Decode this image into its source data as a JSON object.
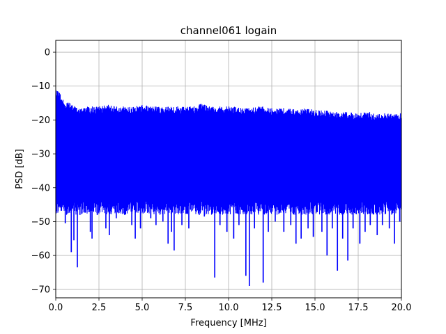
{
  "chart_data": {
    "type": "line",
    "title": "channel061 logain",
    "xlabel": "Frequency [MHz]",
    "ylabel": "PSD [dB]",
    "xlim": [
      0,
      20
    ],
    "ylim": [
      -72.5,
      3.5
    ],
    "xticks": [
      0.0,
      2.5,
      5.0,
      7.5,
      10.0,
      12.5,
      15.0,
      17.5,
      20.0
    ],
    "xtick_labels": [
      "0.0",
      "2.5",
      "5.0",
      "7.5",
      "10.0",
      "12.5",
      "15.0",
      "17.5",
      "20.0"
    ],
    "yticks": [
      0,
      -10,
      -20,
      -30,
      -40,
      -50,
      -60,
      -70
    ],
    "ytick_labels": [
      "0",
      "−10",
      "−20",
      "−30",
      "−40",
      "−50",
      "−60",
      "−70"
    ],
    "grid": true,
    "series": [
      {
        "color": "#0000ff",
        "x": [
          0.0,
          0.1,
          0.2,
          0.4,
          0.6,
          0.8,
          1.0,
          1.25,
          1.5,
          2.0,
          2.5,
          3.0,
          3.5,
          4.0,
          4.5,
          5.0,
          5.5,
          6.0,
          6.5,
          7.0,
          7.5,
          8.0,
          8.5,
          9.0,
          9.5,
          10.0,
          10.5,
          11.0,
          11.5,
          12.0,
          12.5,
          13.0,
          13.5,
          14.0,
          14.5,
          15.0,
          15.5,
          16.0,
          16.5,
          17.0,
          17.5,
          18.0,
          18.5,
          19.0,
          19.5,
          20.0
        ],
        "upper_envelope": [
          -11,
          -11,
          -11,
          -14,
          -14.5,
          -15,
          -15.5,
          -16,
          -16,
          -16,
          -16,
          -15.5,
          -16,
          -16,
          -16,
          -15.5,
          -16,
          -16,
          -16,
          -16,
          -16,
          -16,
          -15,
          -16,
          -16,
          -16,
          -16,
          -16.5,
          -16,
          -16,
          -16.5,
          -16.5,
          -16.5,
          -17,
          -16.5,
          -17,
          -17,
          -17.5,
          -17.5,
          -17.5,
          -18,
          -17.5,
          -18,
          -18,
          -18,
          -18
        ],
        "dense_band": [
          -20,
          -44
        ],
        "lower_spikes": [
          {
            "x": 0.55,
            "y": -50.5
          },
          {
            "x": 0.9,
            "y": -59
          },
          {
            "x": 1.05,
            "y": -55.5
          },
          {
            "x": 1.25,
            "y": -63.5
          },
          {
            "x": 1.4,
            "y": -48
          },
          {
            "x": 2.0,
            "y": -53
          },
          {
            "x": 2.1,
            "y": -55
          },
          {
            "x": 2.4,
            "y": -48
          },
          {
            "x": 2.9,
            "y": -52
          },
          {
            "x": 3.1,
            "y": -54
          },
          {
            "x": 3.5,
            "y": -49
          },
          {
            "x": 4.0,
            "y": -48
          },
          {
            "x": 4.4,
            "y": -51
          },
          {
            "x": 4.6,
            "y": -55
          },
          {
            "x": 4.9,
            "y": -52
          },
          {
            "x": 5.5,
            "y": -49
          },
          {
            "x": 5.8,
            "y": -51
          },
          {
            "x": 6.2,
            "y": -50
          },
          {
            "x": 6.5,
            "y": -56.5
          },
          {
            "x": 6.7,
            "y": -53
          },
          {
            "x": 6.85,
            "y": -58.5
          },
          {
            "x": 7.3,
            "y": -51
          },
          {
            "x": 7.7,
            "y": -52
          },
          {
            "x": 8.3,
            "y": -48
          },
          {
            "x": 8.6,
            "y": -48.5
          },
          {
            "x": 9.2,
            "y": -66.5
          },
          {
            "x": 9.5,
            "y": -51
          },
          {
            "x": 9.9,
            "y": -53
          },
          {
            "x": 10.3,
            "y": -55
          },
          {
            "x": 10.6,
            "y": -51
          },
          {
            "x": 11.0,
            "y": -66
          },
          {
            "x": 11.2,
            "y": -69
          },
          {
            "x": 11.5,
            "y": -52
          },
          {
            "x": 12.0,
            "y": -68
          },
          {
            "x": 12.3,
            "y": -53
          },
          {
            "x": 12.7,
            "y": -50
          },
          {
            "x": 13.2,
            "y": -53
          },
          {
            "x": 13.6,
            "y": -51
          },
          {
            "x": 13.9,
            "y": -56.5
          },
          {
            "x": 14.2,
            "y": -55
          },
          {
            "x": 14.6,
            "y": -52
          },
          {
            "x": 14.9,
            "y": -54.5
          },
          {
            "x": 15.4,
            "y": -53
          },
          {
            "x": 15.7,
            "y": -60
          },
          {
            "x": 16.0,
            "y": -52
          },
          {
            "x": 16.3,
            "y": -64.5
          },
          {
            "x": 16.6,
            "y": -55
          },
          {
            "x": 16.9,
            "y": -61.5
          },
          {
            "x": 17.2,
            "y": -52
          },
          {
            "x": 17.6,
            "y": -56.5
          },
          {
            "x": 17.9,
            "y": -53
          },
          {
            "x": 18.2,
            "y": -51
          },
          {
            "x": 18.6,
            "y": -54
          },
          {
            "x": 18.9,
            "y": -51
          },
          {
            "x": 19.3,
            "y": -52
          },
          {
            "x": 19.6,
            "y": -56.5
          },
          {
            "x": 19.9,
            "y": -50
          }
        ]
      }
    ]
  }
}
